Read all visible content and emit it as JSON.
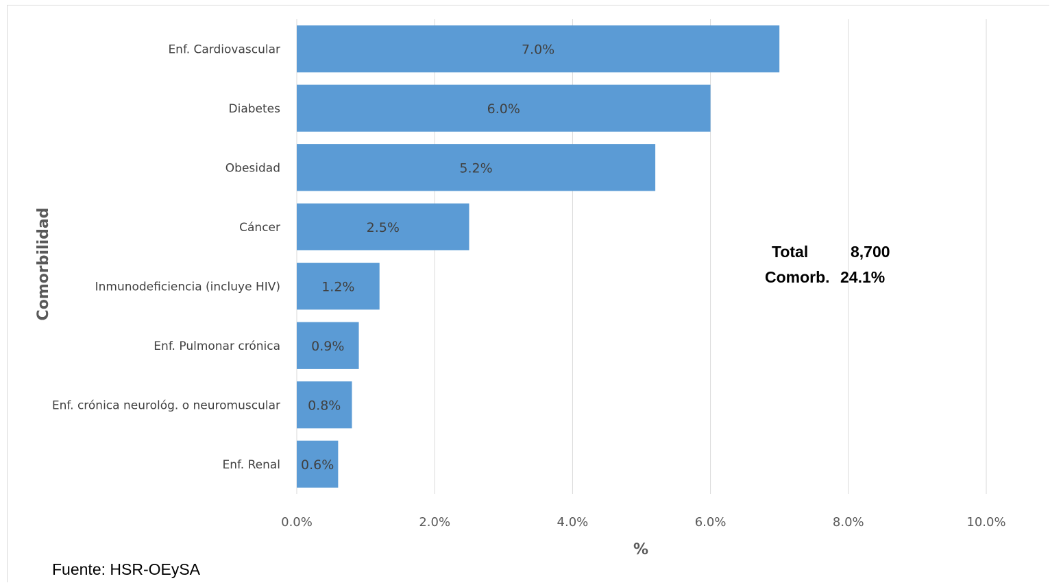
{
  "chart_data": {
    "type": "bar",
    "orientation": "horizontal",
    "categories": [
      "Enf. Cardiovascular",
      "Diabetes",
      "Obesidad",
      "Cáncer",
      "Inmunodeficiencia (incluye HIV)",
      "Enf. Pulmonar crónica",
      "Enf. crónica neurológ. o neuromuscular",
      "Enf. Renal"
    ],
    "values": [
      7.0,
      6.0,
      5.2,
      2.5,
      1.2,
      0.9,
      0.8,
      0.6
    ],
    "data_labels": [
      "7.0%",
      "6.0%",
      "5.2%",
      "2.5%",
      "1.2%",
      "0.9%",
      "0.8%",
      "0.6%"
    ],
    "xlabel": "%",
    "ylabel": "Comorbilidad",
    "xlim": [
      0,
      10
    ],
    "x_ticks": [
      "0.0%",
      "2.0%",
      "4.0%",
      "6.0%",
      "8.0%",
      "10.0%"
    ],
    "grid": "vertical",
    "bar_color": "#5b9bd5",
    "annotation": {
      "line1_label": "Total",
      "line1_value": "8,700",
      "line2_label": "Comorb.",
      "line2_value": "24.1%"
    },
    "source": "Fuente: HSR-OEySA"
  }
}
